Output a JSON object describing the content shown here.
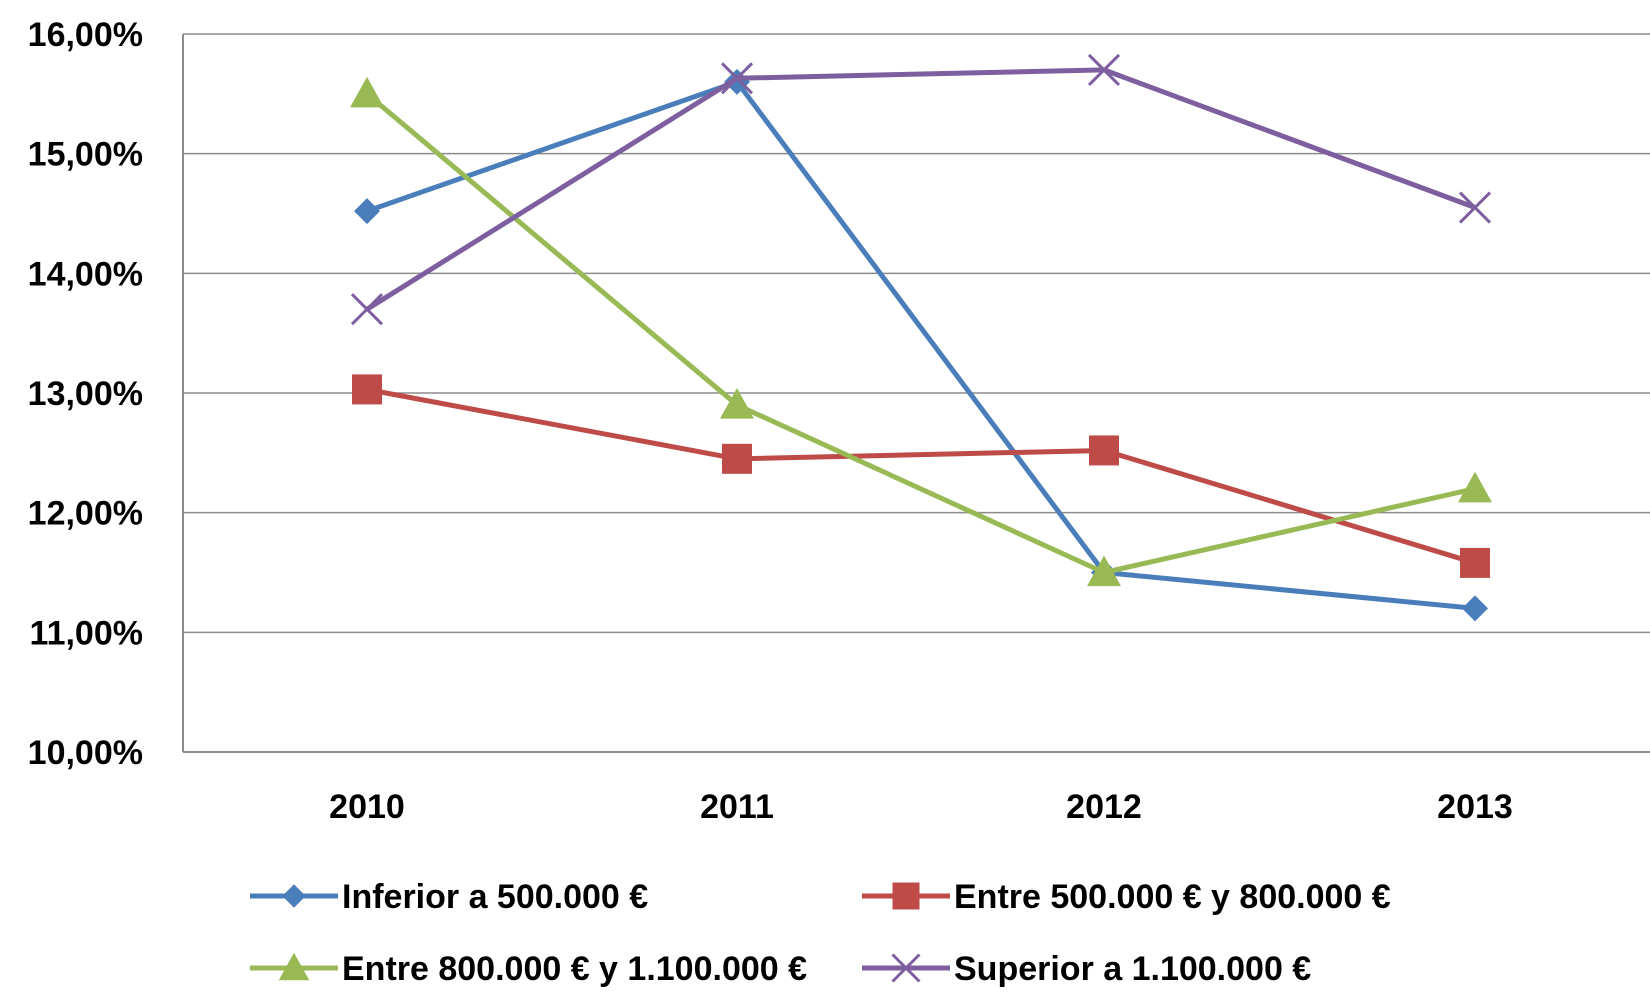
{
  "chart_data": {
    "type": "line",
    "categories": [
      "2010",
      "2011",
      "2012",
      "2013"
    ],
    "y_tick_labels": [
      "10,00%",
      "11,00%",
      "12,00%",
      "13,00%",
      "14,00%",
      "15,00%",
      "16,00%"
    ],
    "y_ticks": [
      10,
      11,
      12,
      13,
      14,
      15,
      16
    ],
    "ylim": [
      10,
      16
    ],
    "grid": true,
    "legend_position": "bottom",
    "series": [
      {
        "name": "Inferior a 500.000 €",
        "marker": "diamond",
        "color": "#4a7ebb",
        "values": [
          14.52,
          15.6,
          11.5,
          11.2
        ]
      },
      {
        "name": "Entre 500.000 € y 800.000 €",
        "marker": "square",
        "color": "#be4b48",
        "values": [
          13.03,
          12.45,
          12.52,
          11.58
        ]
      },
      {
        "name": "Entre 800.000 € y 1.100.000 €",
        "marker": "triangle",
        "color": "#98b954",
        "values": [
          15.5,
          12.9,
          11.5,
          12.2
        ]
      },
      {
        "name": "Superior a 1.100.000 €",
        "marker": "cross",
        "color": "#7d5fa0",
        "values": [
          13.7,
          15.63,
          15.7,
          14.55
        ]
      }
    ]
  }
}
